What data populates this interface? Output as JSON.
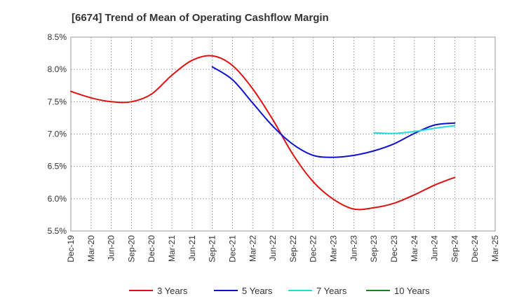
{
  "chart_data": {
    "type": "line",
    "title": "[6674]  Trend of Mean of Operating Cashflow Margin",
    "xlabel": "",
    "ylabel": "",
    "y_unit": "%",
    "ylim": [
      5.5,
      8.5
    ],
    "y_ticks": [
      5.5,
      6.0,
      6.5,
      7.0,
      7.5,
      8.0,
      8.5
    ],
    "y_tick_labels": [
      "5.5%",
      "6.0%",
      "6.5%",
      "7.0%",
      "7.5%",
      "8.0%",
      "8.5%"
    ],
    "x_tick_labels": [
      "Dec-19",
      "Mar-20",
      "Jun-20",
      "Sep-20",
      "Dec-20",
      "Mar-21",
      "Jun-21",
      "Sep-21",
      "Dec-21",
      "Mar-22",
      "Jun-22",
      "Sep-22",
      "Dec-22",
      "Mar-23",
      "Jun-23",
      "Sep-23",
      "Dec-23",
      "Mar-24",
      "Jun-24",
      "Sep-24",
      "Dec-24",
      "Mar-25"
    ],
    "grid": true,
    "legend_position": "bottom",
    "series": [
      {
        "name": "3 Years",
        "color": "#dd1111",
        "x": [
          "Dec-19",
          "Mar-20",
          "Jun-20",
          "Sep-20",
          "Dec-20",
          "Mar-21",
          "Jun-21",
          "Sep-21",
          "Dec-21",
          "Mar-22",
          "Jun-22",
          "Sep-22",
          "Dec-22",
          "Mar-23",
          "Jun-23",
          "Sep-23",
          "Dec-23",
          "Mar-24",
          "Jun-24",
          "Sep-24"
        ],
        "values": [
          7.66,
          7.56,
          7.5,
          7.5,
          7.62,
          7.91,
          8.14,
          8.21,
          8.06,
          7.7,
          7.22,
          6.68,
          6.26,
          5.99,
          5.84,
          5.86,
          5.93,
          6.06,
          6.21,
          6.33
        ]
      },
      {
        "name": "5 Years",
        "color": "#1111cc",
        "x": [
          "Sep-21",
          "Dec-21",
          "Mar-22",
          "Jun-22",
          "Sep-22",
          "Dec-22",
          "Mar-23",
          "Jun-23",
          "Sep-23",
          "Dec-23",
          "Mar-24",
          "Jun-24",
          "Sep-24"
        ],
        "values": [
          8.04,
          7.84,
          7.48,
          7.12,
          6.84,
          6.67,
          6.64,
          6.67,
          6.74,
          6.85,
          7.01,
          7.14,
          7.17
        ]
      },
      {
        "name": "7 Years",
        "color": "#22dddd",
        "x": [
          "Sep-23",
          "Dec-23",
          "Mar-24",
          "Jun-24",
          "Sep-24"
        ],
        "values": [
          7.02,
          7.01,
          7.04,
          7.09,
          7.13
        ]
      },
      {
        "name": "10 Years",
        "color": "#118811",
        "x": [],
        "values": []
      }
    ]
  }
}
